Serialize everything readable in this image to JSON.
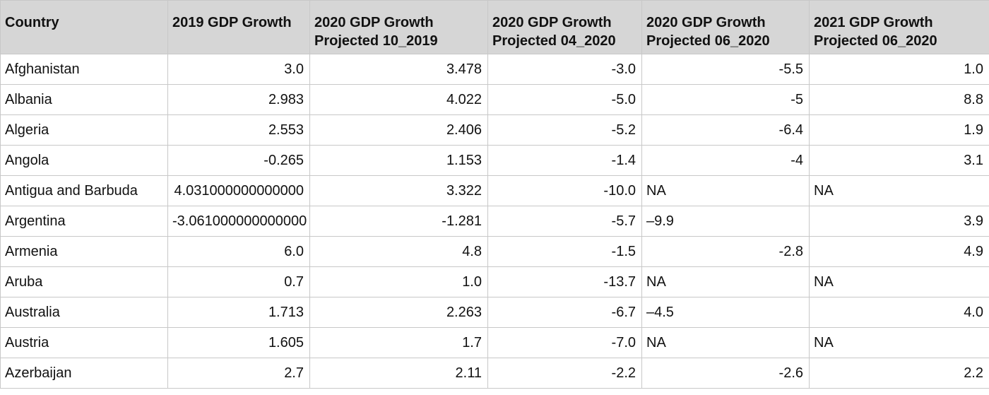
{
  "table": {
    "header": [
      "Country",
      "2019 GDP Growth",
      "2020 GDP Growth\nProjected 10_2019",
      "2020 GDP Growth\nProjected 04_2020",
      "2020 GDP Growth\nProjected 06_2020",
      "2021 GDP Growth\nProjected 06_2020"
    ],
    "rows": [
      [
        "Afghanistan",
        "3.0",
        "3.478",
        "-3.0",
        "-5.5",
        "1.0"
      ],
      [
        "Albania",
        "2.983",
        "4.022",
        "-5.0",
        "-5",
        "8.8"
      ],
      [
        "Algeria",
        "2.553",
        "2.406",
        "-5.2",
        "-6.4",
        "1.9"
      ],
      [
        "Angola",
        "-0.265",
        "1.153",
        "-1.4",
        "-4",
        "3.1"
      ],
      [
        "Antigua and Barbuda",
        "4.031000000000000",
        "3.322",
        "-10.0",
        "NA",
        "NA"
      ],
      [
        "Argentina",
        "-3.061000000000000",
        "-1.281",
        "-5.7",
        "–9.9",
        "3.9"
      ],
      [
        "Armenia",
        "6.0",
        "4.8",
        "-1.5",
        "-2.8",
        "4.9"
      ],
      [
        "Aruba",
        "0.7",
        "1.0",
        "-13.7",
        "NA",
        "NA"
      ],
      [
        "Australia",
        "1.713",
        "2.263",
        "-6.7",
        "–4.5",
        "4.0"
      ],
      [
        "Austria",
        "1.605",
        "1.7",
        "-7.0",
        "NA",
        "NA"
      ],
      [
        "Azerbaijan",
        "2.7",
        "2.11",
        "-2.2",
        "-2.6",
        "2.2"
      ]
    ]
  }
}
